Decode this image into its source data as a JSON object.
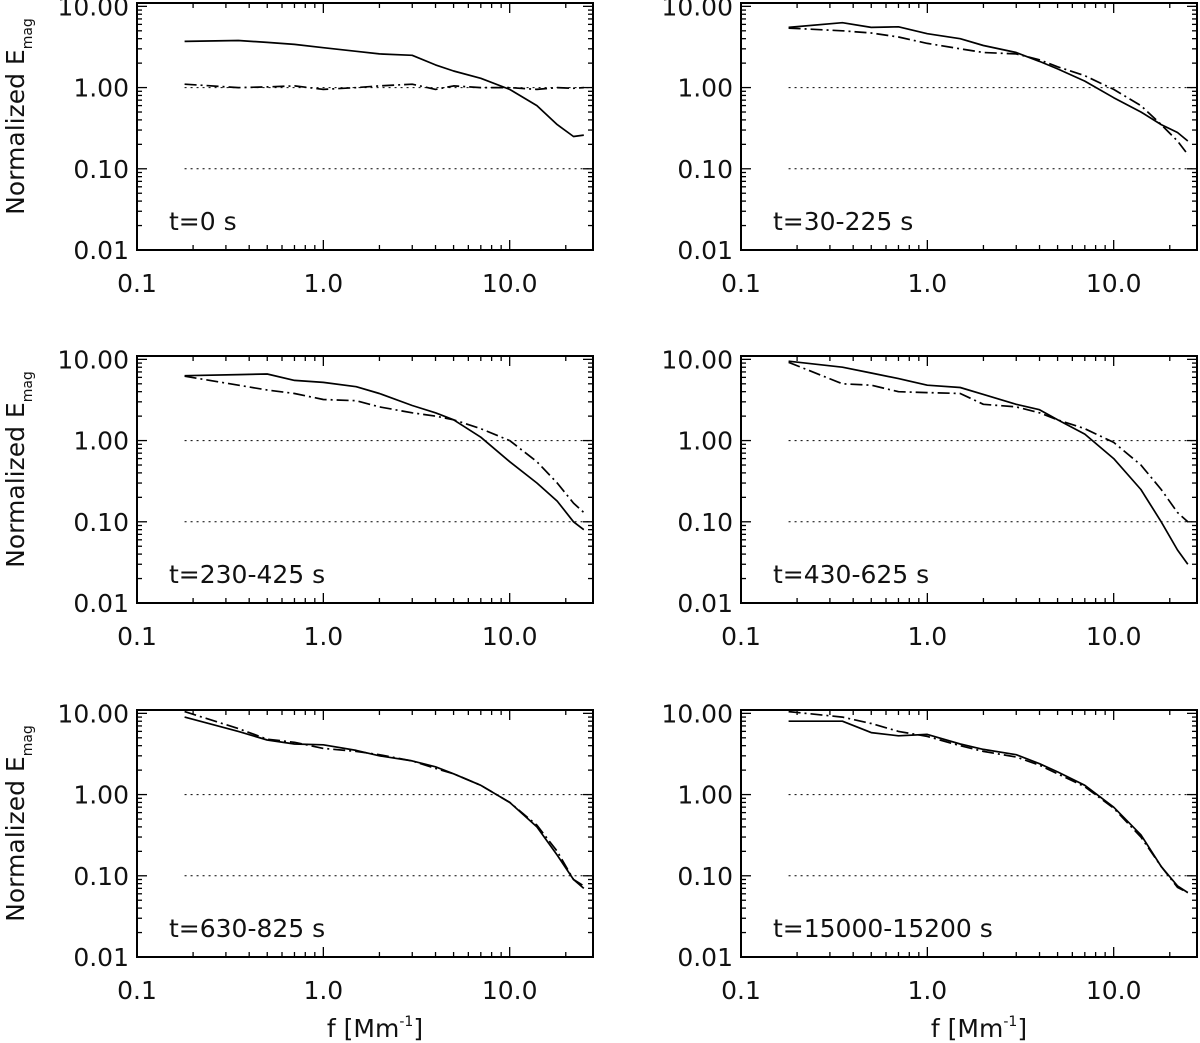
{
  "chart_data": {
    "type": "line",
    "layout": "3x2 grid",
    "ylabel": "Normalized E",
    "ylabel_subscript": "mag",
    "xlabel": "f  [Mm",
    "xlabel_superscript": "-1",
    "xlabel_close": "]",
    "xscale": "log",
    "yscale": "log",
    "xlim": [
      0.1,
      28
    ],
    "ylim": [
      0.01,
      11
    ],
    "x_ticks": [
      0.1,
      1.0,
      10.0
    ],
    "x_tick_labels": [
      "0.1",
      "1.0",
      "10.0"
    ],
    "y_ticks": [
      10,
      1,
      0.1,
      0.01
    ],
    "y_tick_labels": [
      "10.00",
      "1.00",
      "0.10",
      "0.01"
    ],
    "reference_lines": [
      1.0,
      0.1
    ],
    "f": [
      0.18,
      0.35,
      0.5,
      0.7,
      1,
      1.5,
      2,
      3,
      4,
      5,
      7,
      10,
      14,
      18,
      22,
      25
    ],
    "panels": [
      {
        "label": "t=0 s",
        "series": [
          {
            "name": "solid",
            "style": "solid",
            "values": [
              3.7,
              3.8,
              3.6,
              3.4,
              3.1,
              2.8,
              2.6,
              2.5,
              1.9,
              1.6,
              1.3,
              0.95,
              0.6,
              0.35,
              0.25,
              0.26
            ]
          },
          {
            "name": "dash-dot",
            "style": "dashdot",
            "values": [
              1.1,
              1.0,
              1.02,
              1.05,
              0.95,
              1.0,
              1.05,
              1.1,
              0.95,
              1.05,
              1.0,
              1.0,
              0.95,
              1.0,
              0.98,
              1.0
            ]
          }
        ]
      },
      {
        "label": "t=30-225 s",
        "series": [
          {
            "name": "solid",
            "style": "solid",
            "values": [
              5.5,
              6.3,
              5.5,
              5.6,
              4.6,
              4.0,
              3.3,
              2.7,
              2.1,
              1.7,
              1.2,
              0.75,
              0.5,
              0.35,
              0.28,
              0.22
            ]
          },
          {
            "name": "dash-dot",
            "style": "dashdot",
            "values": [
              5.4,
              5.0,
              4.7,
              4.2,
              3.5,
              3.0,
              2.7,
              2.6,
              2.2,
              1.8,
              1.4,
              0.95,
              0.6,
              0.35,
              0.22,
              0.15
            ]
          }
        ]
      },
      {
        "label": "t=230-425 s",
        "series": [
          {
            "name": "solid",
            "style": "solid",
            "values": [
              6.3,
              6.5,
              6.6,
              5.5,
              5.2,
              4.6,
              3.8,
              2.7,
              2.2,
              1.8,
              1.1,
              0.55,
              0.3,
              0.18,
              0.1,
              0.08
            ]
          },
          {
            "name": "dash-dot",
            "style": "dashdot",
            "values": [
              6.2,
              4.8,
              4.2,
              3.8,
              3.2,
              3.1,
              2.6,
              2.2,
              2.0,
              1.8,
              1.4,
              1.0,
              0.55,
              0.3,
              0.17,
              0.13
            ]
          }
        ]
      },
      {
        "label": "t=430-625 s",
        "series": [
          {
            "name": "solid",
            "style": "solid",
            "values": [
              9.5,
              8.0,
              6.8,
              5.8,
              4.8,
              4.5,
              3.7,
              2.8,
              2.4,
              1.8,
              1.2,
              0.6,
              0.25,
              0.1,
              0.045,
              0.03
            ]
          },
          {
            "name": "dash-dot",
            "style": "dashdot",
            "values": [
              9.2,
              5.0,
              4.8,
              4.0,
              3.9,
              3.8,
              2.8,
              2.6,
              2.2,
              1.8,
              1.4,
              0.95,
              0.5,
              0.25,
              0.13,
              0.1
            ]
          }
        ]
      },
      {
        "label": "t=630-825 s",
        "series": [
          {
            "name": "solid",
            "style": "solid",
            "values": [
              9.0,
              6.0,
              4.7,
              4.2,
              4.1,
              3.5,
              3.0,
              2.6,
              2.2,
              1.8,
              1.3,
              0.8,
              0.4,
              0.18,
              0.09,
              0.07
            ]
          },
          {
            "name": "dash-dot",
            "style": "dashdot",
            "values": [
              10.5,
              6.5,
              4.8,
              4.4,
              3.7,
              3.4,
              3.1,
              2.6,
              2.1,
              1.8,
              1.3,
              0.8,
              0.42,
              0.2,
              0.09,
              0.075
            ]
          }
        ]
      },
      {
        "label": "t=15000-15200 s",
        "series": [
          {
            "name": "solid",
            "style": "solid",
            "values": [
              8.0,
              8.0,
              5.8,
              5.3,
              5.5,
              4.2,
              3.6,
              3.1,
              2.4,
              1.9,
              1.3,
              0.7,
              0.32,
              0.13,
              0.075,
              0.062
            ]
          },
          {
            "name": "dash-dot",
            "style": "dashdot",
            "values": [
              10.5,
              9.0,
              7.5,
              6.0,
              5.2,
              4.0,
              3.4,
              2.9,
              2.3,
              1.8,
              1.25,
              0.68,
              0.3,
              0.13,
              0.072,
              0.062
            ]
          }
        ]
      }
    ]
  }
}
